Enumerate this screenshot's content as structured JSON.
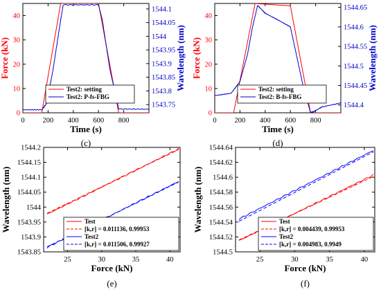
{
  "chart_data": [
    {
      "type": "line",
      "panel_label": "(c)",
      "xlabel": "Time (s)",
      "ylabel_left": "Force (kN)",
      "ylabel_right": "Wavelength (nm)",
      "xlim": [
        0,
        1000
      ],
      "ylim_left": [
        0,
        45
      ],
      "ylim_right": [
        1543.72,
        1544.12
      ],
      "xticks": [
        0,
        200,
        400,
        600,
        800
      ],
      "yticks_left": [
        0,
        10,
        20,
        30,
        40
      ],
      "yticks_right": [
        "1543.75",
        "1543.8",
        "1543.85",
        "1543.9",
        "1543.95",
        "1544",
        "1544.05",
        "1544.1"
      ],
      "yticks_right_values": [
        1543.75,
        1543.8,
        1543.85,
        1543.9,
        1543.95,
        1544.0,
        1544.05,
        1544.1
      ],
      "legend_position": "bottom-center",
      "colors": {
        "left_axis": "#ff0000",
        "right_axis": "#0000cc"
      },
      "series": [
        {
          "name": "Test2: setting",
          "axis": "left",
          "color": "#ff0000",
          "x": [
            0,
            150,
            300,
            600,
            760,
            1000
          ],
          "y": [
            0,
            0,
            45,
            45,
            0,
            0
          ]
        },
        {
          "name": "Test2: P-fs-FBG",
          "axis": "right",
          "color": "#0000cc",
          "x": [
            0,
            150,
            190,
            240,
            300,
            320,
            600,
            630,
            690,
            760,
            1000
          ],
          "y": [
            1543.731,
            1543.731,
            1543.755,
            1543.88,
            1544.06,
            1544.115,
            1544.115,
            1544.06,
            1543.88,
            1543.734,
            1543.733
          ]
        }
      ]
    },
    {
      "type": "line",
      "panel_label": "(d)",
      "xlabel": "Time (s)",
      "ylabel_left": "Force (kN)",
      "ylabel_right": "Wavelength (nm)",
      "xlim": [
        0,
        1000
      ],
      "ylim_left": [
        0,
        45
      ],
      "ylim_right": [
        1544.38,
        1544.66
      ],
      "xticks": [
        0,
        200,
        400,
        600,
        800
      ],
      "yticks_left": [
        0,
        10,
        20,
        30,
        40
      ],
      "yticks_right": [
        "1544.4",
        "1544.45",
        "1544.5",
        "1544.55",
        "1544.6",
        "1544.65"
      ],
      "yticks_right_values": [
        1544.4,
        1544.45,
        1544.5,
        1544.55,
        1544.6,
        1544.65
      ],
      "legend_position": "bottom-center",
      "colors": {
        "left_axis": "#ff0000",
        "right_axis": "#0000cc"
      },
      "series": [
        {
          "name": "Test2: setting",
          "axis": "left",
          "color": "#ff0000",
          "x": [
            0,
            150,
            320,
            600,
            760,
            1000
          ],
          "y": [
            0,
            0,
            45,
            44,
            0,
            0
          ]
        },
        {
          "name": "Test2: B-fs-FBG",
          "axis": "right",
          "color": "#0000cc",
          "x": [
            0,
            130,
            200,
            260,
            300,
            340,
            400,
            500,
            600,
            640,
            700,
            760,
            780,
            850,
            1000
          ],
          "y": [
            1544.424,
            1544.43,
            1544.46,
            1544.53,
            1544.6,
            1544.655,
            1544.635,
            1544.618,
            1544.6,
            1544.54,
            1544.45,
            1544.38,
            1544.382,
            1544.395,
            1544.405
          ]
        }
      ]
    },
    {
      "type": "line",
      "panel_label": "(e)",
      "xlabel": "Force (kN)",
      "ylabel": "Wavelength (nm)",
      "xlim": [
        21.5,
        41.5
      ],
      "ylim": [
        1543.85,
        1544.2
      ],
      "xticks": [
        25,
        30,
        35,
        40
      ],
      "yticks": [
        "1543.85",
        "1543.9",
        "1543.95",
        "1544",
        "1544.05",
        "1544.1",
        "1544.15",
        "1544.2"
      ],
      "yticks_values": [
        1543.85,
        1543.9,
        1543.95,
        1544.0,
        1544.05,
        1544.1,
        1544.15,
        1544.2
      ],
      "legend_position": "bottom-right",
      "series": [
        {
          "name": "Test",
          "color": "#ff0000",
          "dash": "solid",
          "x": [
            22,
            41.3
          ],
          "y": [
            1543.976,
            1544.195
          ]
        },
        {
          "name": "[k,r] =  0.011136, 0.99953",
          "color": "#ff0000",
          "dash": "dashed",
          "x": [
            22,
            41.3
          ],
          "y": [
            1543.979,
            1544.193
          ]
        },
        {
          "name": "Test2",
          "color": "#0000ff",
          "dash": "solid",
          "x": [
            22,
            41.3
          ],
          "y": [
            1543.865,
            1544.086
          ]
        },
        {
          "name": "[k,r] =  0.011506, 0.99927",
          "color": "#0000ff",
          "dash": "dashed",
          "x": [
            22,
            41.3
          ],
          "y": [
            1543.867,
            1544.084
          ]
        }
      ]
    },
    {
      "type": "line",
      "panel_label": "(f)",
      "xlabel": "Force (kN)",
      "ylabel": "Wavelength (nm)",
      "xlim": [
        21.5,
        41.5
      ],
      "ylim": [
        1544.5,
        1544.64
      ],
      "xticks": [
        25,
        30,
        35,
        40
      ],
      "yticks": [
        "1544.5",
        "1544.52",
        "1544.54",
        "1544.56",
        "1544.58",
        "1544.6",
        "1544.62",
        "1544.64"
      ],
      "yticks_values": [
        1544.5,
        1544.52,
        1544.54,
        1544.56,
        1544.58,
        1544.6,
        1544.62,
        1544.64
      ],
      "legend_position": "bottom-right",
      "series": [
        {
          "name": "Test",
          "color": "#ff0000",
          "dash": "solid",
          "x": [
            22,
            41.3
          ],
          "y": [
            1544.515,
            1544.603
          ]
        },
        {
          "name": "[k,r] =  0.004439, 0.99953",
          "color": "#ff0000",
          "dash": "dashed",
          "x": [
            22,
            41.3
          ],
          "y": [
            1544.516,
            1544.601
          ]
        },
        {
          "name": "Test2",
          "color": "#0000ff",
          "dash": "solid",
          "x": [
            22,
            41.3
          ],
          "y": [
            1544.544,
            1544.636
          ]
        },
        {
          "name": "[k,r] =  0.004983, 0.9949",
          "color": "#0000ff",
          "dash": "dashed",
          "x": [
            22,
            41.3
          ],
          "y": [
            1544.541,
            1544.634
          ]
        }
      ]
    }
  ]
}
